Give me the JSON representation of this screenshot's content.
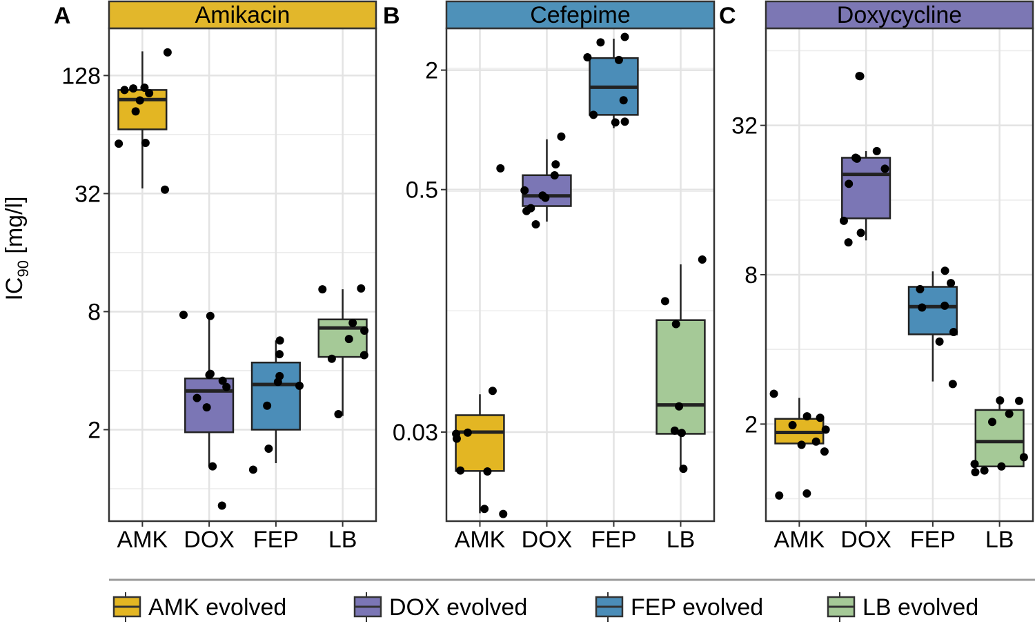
{
  "y_axis_label": {
    "main": "IC",
    "sub": "90",
    "unit": " [mg/l]"
  },
  "colors": {
    "AMK": "#E3B623",
    "DOX": "#7B76B5",
    "FEP": "#4B8DB8",
    "LB": "#A5C997",
    "strip_AMK": "#E2B72B",
    "strip_FEP": "#4E91B9",
    "strip_DOX": "#7C77B4"
  },
  "legend": {
    "items": [
      {
        "key": "AMK",
        "label": "AMK evolved"
      },
      {
        "key": "DOX",
        "label": "DOX evolved"
      },
      {
        "key": "FEP",
        "label": "FEP evolved"
      },
      {
        "key": "LB",
        "label": "LB evolved"
      }
    ]
  },
  "chart_data": [
    {
      "type": "boxplot",
      "panel_letter": "A",
      "title": "Amikacin",
      "strip_color_key": "strip_AMK",
      "scale": "log2",
      "ylim_log2": [
        -0.55,
        7.8
      ],
      "yticks": [
        {
          "value": 2,
          "label": "2"
        },
        {
          "value": 8,
          "label": "8"
        },
        {
          "value": 32,
          "label": "32"
        },
        {
          "value": 128,
          "label": "128"
        }
      ],
      "categories": [
        "AMK",
        "DOX",
        "FEP",
        "LB"
      ],
      "groups": [
        {
          "cat": "AMK",
          "whisker_low": 34.0,
          "q1": 68.0,
          "median": 96.5,
          "q3": 108.0,
          "whisker_high": 170.0,
          "points": [
            33.5,
            57.5,
            58.0,
            84.0,
            95.5,
            104.0,
            108.0,
            110.0,
            111.0,
            168.0
          ]
        },
        {
          "cat": "DOX",
          "whisker_low": 1.3,
          "q1": 1.94,
          "median": 3.15,
          "q3": 3.65,
          "whisker_high": 7.7,
          "points": [
            0.82,
            1.3,
            2.6,
            2.9,
            3.3,
            3.55,
            3.8,
            3.85,
            7.6,
            7.7
          ]
        },
        {
          "cat": "FEP",
          "whisker_low": 1.35,
          "q1": 2.0,
          "median": 3.4,
          "q3": 4.4,
          "whisker_high": 5.7,
          "points": [
            1.25,
            1.6,
            2.65,
            3.35,
            3.5,
            3.75,
            4.85,
            5.7
          ]
        },
        {
          "cat": "LB",
          "whisker_low": 2.35,
          "q1": 4.7,
          "median": 6.6,
          "q3": 7.3,
          "whisker_high": 10.4,
          "points": [
            2.4,
            4.6,
            4.8,
            5.8,
            6.4,
            7.0,
            10.4,
            10.5
          ]
        }
      ]
    },
    {
      "type": "boxplot",
      "panel_letter": "B",
      "title": "Cefepime",
      "strip_color_key": "strip_FEP",
      "scale": "log2",
      "ylim_log2": [
        -6.55,
        1.7
      ],
      "yticks": [
        {
          "value": 0.03,
          "label": "0.03"
        },
        {
          "value": 0.5,
          "label": "0.5"
        },
        {
          "value": 2,
          "label": "2"
        }
      ],
      "categories": [
        "AMK",
        "DOX",
        "FEP",
        "LB"
      ],
      "groups": [
        {
          "cat": "AMK",
          "whisker_low": 0.0117,
          "q1": 0.0191,
          "median": 0.03,
          "q3": 0.0365,
          "whisker_high": 0.0465,
          "points": [
            0.0116,
            0.0123,
            0.019,
            0.0192,
            0.0278,
            0.0294,
            0.0298,
            0.0484,
            0.64
          ]
        },
        {
          "cat": "DOX",
          "whisker_low": 0.345,
          "q1": 0.413,
          "median": 0.465,
          "q3": 0.591,
          "whisker_high": 0.896,
          "points": [
            0.334,
            0.39,
            0.403,
            0.455,
            0.467,
            0.495,
            0.59,
            0.67,
            0.925
          ]
        },
        {
          "cat": "FEP",
          "whisker_low": 1.02,
          "q1": 1.19,
          "median": 1.64,
          "q3": 2.3,
          "whisker_high": 2.88,
          "points": [
            1.09,
            1.1,
            1.19,
            1.41,
            2.25,
            2.32,
            2.76,
            2.94
          ]
        },
        {
          "cat": "LB",
          "whisker_low": 0.0192,
          "q1": 0.0294,
          "median": 0.0411,
          "q3": 0.11,
          "whisker_high": 0.21,
          "points": [
            0.0196,
            0.0297,
            0.0305,
            0.0404,
            0.105,
            0.137,
            0.222
          ]
        }
      ]
    },
    {
      "type": "boxplot",
      "panel_letter": "C",
      "title": "Doxycycline",
      "strip_color_key": "strip_DOX",
      "scale": "log2",
      "ylim_log2": [
        -0.3,
        6.3
      ],
      "yticks": [
        {
          "value": 2,
          "label": "2"
        },
        {
          "value": 8,
          "label": "8"
        },
        {
          "value": 32,
          "label": "32"
        }
      ],
      "categories": [
        "AMK",
        "DOX",
        "FEP",
        "LB"
      ],
      "groups": [
        {
          "cat": "AMK",
          "whisker_low": 1.62,
          "q1": 1.67,
          "median": 1.85,
          "q3": 2.1,
          "whisker_high": 2.55,
          "points": [
            1.03,
            1.05,
            1.55,
            1.65,
            1.7,
            1.9,
            1.98,
            2.12,
            2.15,
            2.65
          ]
        },
        {
          "cat": "DOX",
          "whisker_low": 11.0,
          "q1": 13.5,
          "median": 20.3,
          "q3": 23.7,
          "whisker_high": 25.2,
          "points": [
            10.8,
            11.8,
            13.2,
            18.6,
            21.4,
            23.5,
            23.7,
            25.2,
            50.5,
            50.6
          ]
        },
        {
          "cat": "FEP",
          "whisker_low": 2.97,
          "q1": 4.6,
          "median": 5.95,
          "q3": 7.15,
          "whisker_high": 8.25,
          "points": [
            2.9,
            4.3,
            4.7,
            5.9,
            6.0,
            7.0,
            7.4,
            8.3
          ]
        },
        {
          "cat": "LB",
          "whisker_low": 1.32,
          "q1": 1.35,
          "median": 1.7,
          "q3": 2.28,
          "whisker_high": 2.5,
          "points": [
            1.28,
            1.3,
            1.35,
            1.38,
            1.47,
            2.04,
            2.2,
            2.48,
            2.49
          ]
        }
      ]
    }
  ]
}
